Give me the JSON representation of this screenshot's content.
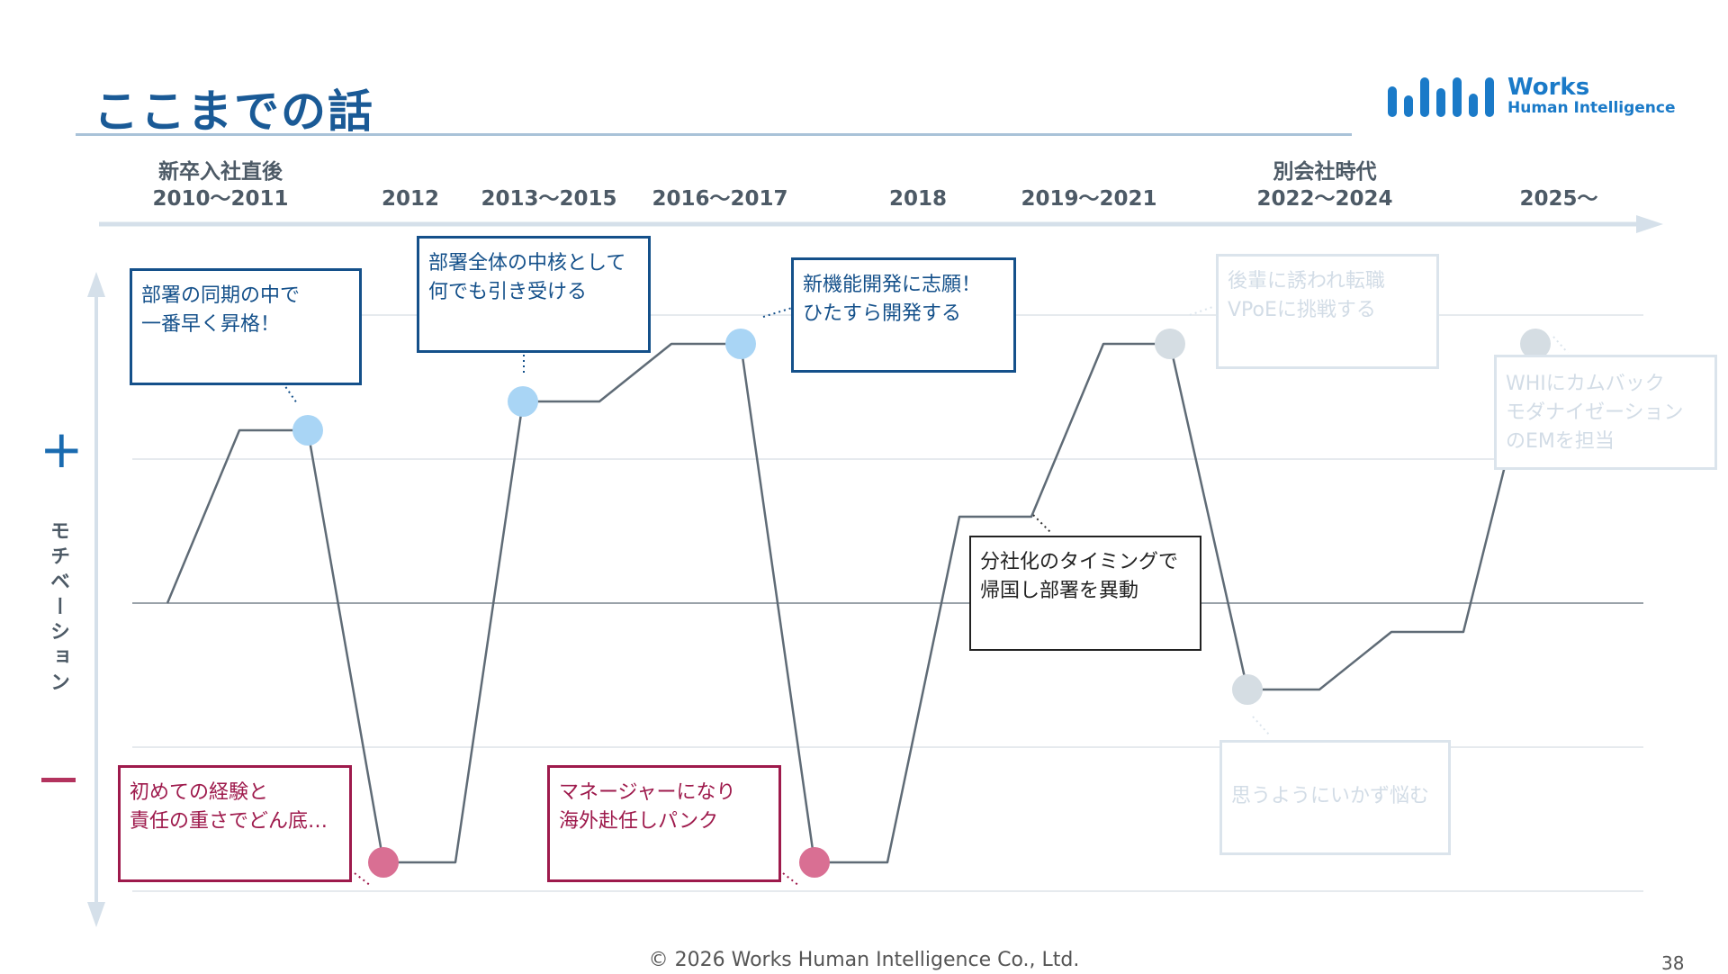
{
  "slide": {
    "title": "ここまでの話",
    "page_number": "38",
    "footer": "© 2026 Works Human Intelligence Co., Ltd."
  },
  "logo": {
    "line1": "Works",
    "line2": "Human Intelligence",
    "color": "#1a7ac8"
  },
  "y_axis": {
    "label": "モチベーション",
    "plus": "+",
    "minus": "−"
  },
  "periods": [
    {
      "top": "新卒入社直後",
      "label": "2010〜2011"
    },
    {
      "top": "",
      "label": "2012"
    },
    {
      "top": "",
      "label": "2013〜2015"
    },
    {
      "top": "",
      "label": "2016〜2017"
    },
    {
      "top": "",
      "label": "2018"
    },
    {
      "top": "",
      "label": "2019〜2021"
    },
    {
      "top": "別会社時代",
      "label": "2022〜2024"
    },
    {
      "top": "",
      "label": "2025〜"
    }
  ],
  "callouts": [
    {
      "text": "部署の同期の中で\n一番早く昇格！",
      "style": "plus"
    },
    {
      "text": "部署全体の中核として\n何でも引き受ける",
      "style": "plus"
    },
    {
      "text": "新機能開発に志願！\nひたすら開発する",
      "style": "plus"
    },
    {
      "text": "初めての経験と\n責任の重さでどん底…",
      "style": "minus"
    },
    {
      "text": "マネージャーになり\n海外赴任しパンク",
      "style": "minus"
    },
    {
      "text": "分社化のタイミングで\n帰国し部署を異動",
      "style": "black"
    },
    {
      "text": "後輩に誘われ転職\nVPoEに挑戦する",
      "style": "faded"
    },
    {
      "text": "思うようにいかず悩む",
      "style": "faded"
    },
    {
      "text": "WHIにカムバック\nモダナイゼーション\nのEMを担当",
      "style": "faded"
    }
  ],
  "chart_data": {
    "type": "line",
    "ylim": [
      -1,
      1
    ],
    "series": [
      {
        "points": [
          {
            "x": "2010〜2011",
            "y": 0.0
          },
          {
            "x": "2010〜2011",
            "y": 0.6
          },
          {
            "x": "2010〜2011",
            "y": 0.6
          },
          {
            "x": "2012",
            "y": -0.9
          },
          {
            "x": "2012",
            "y": -0.9
          },
          {
            "x": "2013〜2015",
            "y": 0.7
          },
          {
            "x": "2013〜2015",
            "y": 0.7
          },
          {
            "x": "2013〜2015",
            "y": 0.9
          },
          {
            "x": "2016〜2017",
            "y": 0.9
          },
          {
            "x": "2016〜2017",
            "y": -0.9
          },
          {
            "x": "2018",
            "y": -0.9
          },
          {
            "x": "2018",
            "y": 0.3
          },
          {
            "x": "2019〜2021",
            "y": 0.3
          },
          {
            "x": "2019〜2021",
            "y": 0.9
          },
          {
            "x": "2019〜2021",
            "y": 0.9
          },
          {
            "x": "2022〜2024",
            "y": -0.3
          },
          {
            "x": "2022〜2024",
            "y": -0.3
          },
          {
            "x": "2022〜2024",
            "y": -0.1
          },
          {
            "x": "2025〜",
            "y": -0.1
          },
          {
            "x": "2025〜",
            "y": 0.9
          }
        ]
      }
    ],
    "markers": [
      {
        "x": "2010〜2011",
        "y": 0.6,
        "color": "#a9d5f5"
      },
      {
        "x": "2012",
        "y": -0.9,
        "color": "#d96f93"
      },
      {
        "x": "2013〜2015",
        "y": 0.7,
        "color": "#a9d5f5"
      },
      {
        "x": "2016〜2017",
        "y": 0.9,
        "color": "#a9d5f5"
      },
      {
        "x": "2016〜2017",
        "y": -0.9,
        "color": "#d96f93"
      },
      {
        "x": "2019〜2021",
        "y": 0.9,
        "color": "#d5dde3"
      },
      {
        "x": "2022〜2024",
        "y": -0.3,
        "color": "#d5dde3"
      },
      {
        "x": "2025〜",
        "y": 0.9,
        "color": "#d5dde3"
      }
    ],
    "grid": true
  }
}
